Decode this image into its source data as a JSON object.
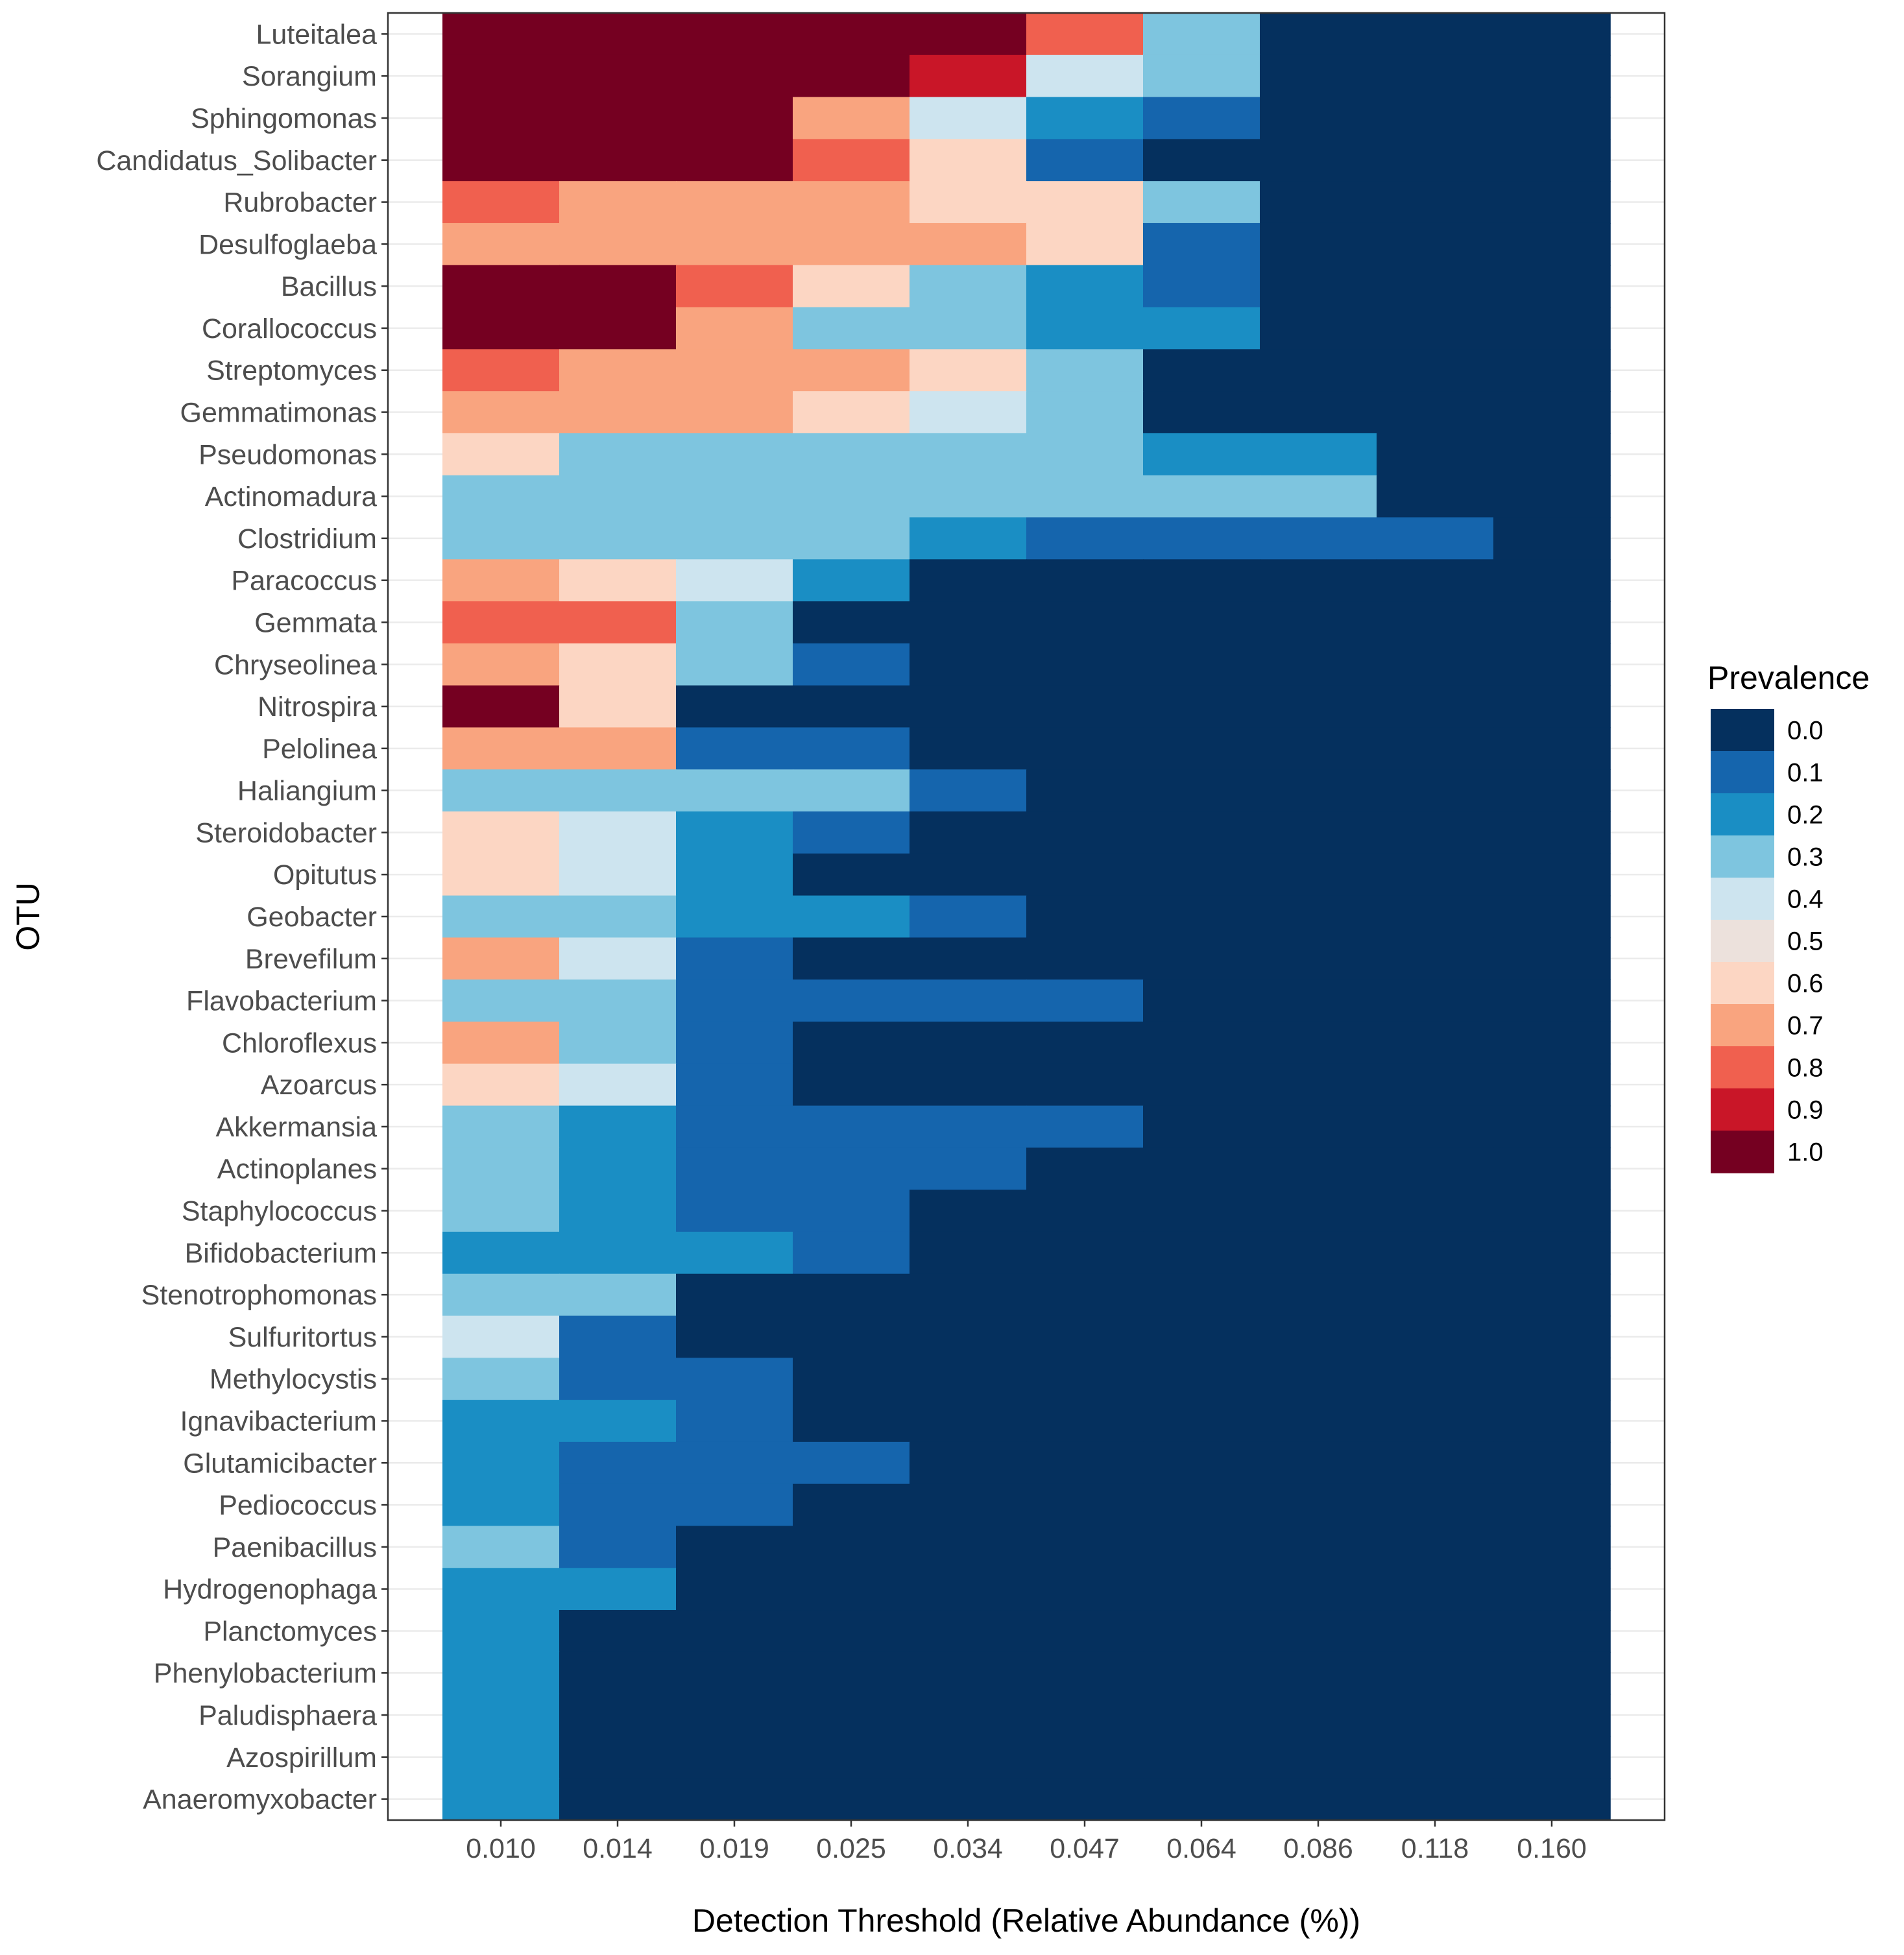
{
  "chart_data": {
    "type": "heatmap",
    "title": "",
    "xlabel": "Detection Threshold (Relative Abundance (%))",
    "ylabel": "OTU",
    "x_categories": [
      "0.010",
      "0.014",
      "0.019",
      "0.025",
      "0.034",
      "0.047",
      "0.064",
      "0.086",
      "0.118",
      "0.160"
    ],
    "y_categories": [
      "Luteitalea",
      "Sorangium",
      "Sphingomonas",
      "Candidatus_Solibacter",
      "Rubrobacter",
      "Desulfoglaeba",
      "Bacillus",
      "Corallococcus",
      "Streptomyces",
      "Gemmatimonas",
      "Pseudomonas",
      "Actinomadura",
      "Clostridium",
      "Paracoccus",
      "Gemmata",
      "Chryseolinea",
      "Nitrospira",
      "Pelolinea",
      "Haliangium",
      "Steroidobacter",
      "Opitutus",
      "Geobacter",
      "Brevefilum",
      "Flavobacterium",
      "Chloroflexus",
      "Azoarcus",
      "Akkermansia",
      "Actinoplanes",
      "Staphylococcus",
      "Bifidobacterium",
      "Stenotrophomonas",
      "Sulfuritortus",
      "Methylocystis",
      "Ignavibacterium",
      "Glutamicibacter",
      "Pediococcus",
      "Paenibacillus",
      "Hydrogenophaga",
      "Planctomyces",
      "Phenylobacterium",
      "Paludisphaera",
      "Azospirillum",
      "Anaeromyxobacter"
    ],
    "legend_title": "Prevalence",
    "legend": [
      "0.0",
      "0.1",
      "0.2",
      "0.3",
      "0.4",
      "0.5",
      "0.6",
      "0.7",
      "0.8",
      "0.9",
      "1.0"
    ],
    "legend_colors": [
      "#05305e",
      "#1565ad",
      "#1a8ec4",
      "#7ec5df",
      "#cde4ef",
      "#ece1dc",
      "#fcd6c3",
      "#f9a47f",
      "#f0604f",
      "#c91628",
      "#750021"
    ],
    "value_range": [
      0,
      1
    ],
    "values": [
      [
        1.0,
        1.0,
        1.0,
        1.0,
        1.0,
        0.8,
        0.3,
        0.0,
        0.0,
        0.0
      ],
      [
        1.0,
        1.0,
        1.0,
        1.0,
        0.9,
        0.4,
        0.3,
        0.0,
        0.0,
        0.0
      ],
      [
        1.0,
        1.0,
        1.0,
        0.7,
        0.4,
        0.2,
        0.1,
        0.0,
        0.0,
        0.0
      ],
      [
        1.0,
        1.0,
        1.0,
        0.8,
        0.6,
        0.1,
        0.0,
        0.0,
        0.0,
        0.0
      ],
      [
        0.8,
        0.7,
        0.7,
        0.7,
        0.6,
        0.6,
        0.3,
        0.0,
        0.0,
        0.0
      ],
      [
        0.7,
        0.7,
        0.7,
        0.7,
        0.7,
        0.6,
        0.1,
        0.0,
        0.0,
        0.0
      ],
      [
        1.0,
        1.0,
        0.8,
        0.6,
        0.3,
        0.2,
        0.1,
        0.0,
        0.0,
        0.0
      ],
      [
        1.0,
        1.0,
        0.7,
        0.3,
        0.3,
        0.2,
        0.2,
        0.0,
        0.0,
        0.0
      ],
      [
        0.8,
        0.7,
        0.7,
        0.7,
        0.6,
        0.3,
        0.0,
        0.0,
        0.0,
        0.0
      ],
      [
        0.7,
        0.7,
        0.7,
        0.6,
        0.4,
        0.3,
        0.0,
        0.0,
        0.0,
        0.0
      ],
      [
        0.6,
        0.3,
        0.3,
        0.3,
        0.3,
        0.3,
        0.2,
        0.2,
        0.0,
        0.0
      ],
      [
        0.3,
        0.3,
        0.3,
        0.3,
        0.3,
        0.3,
        0.3,
        0.3,
        0.0,
        0.0
      ],
      [
        0.3,
        0.3,
        0.3,
        0.3,
        0.2,
        0.1,
        0.1,
        0.1,
        0.1,
        0.0
      ],
      [
        0.7,
        0.6,
        0.4,
        0.2,
        0.0,
        0.0,
        0.0,
        0.0,
        0.0,
        0.0
      ],
      [
        0.8,
        0.8,
        0.3,
        0.0,
        0.0,
        0.0,
        0.0,
        0.0,
        0.0,
        0.0
      ],
      [
        0.7,
        0.6,
        0.3,
        0.1,
        0.0,
        0.0,
        0.0,
        0.0,
        0.0,
        0.0
      ],
      [
        1.0,
        0.6,
        0.0,
        0.0,
        0.0,
        0.0,
        0.0,
        0.0,
        0.0,
        0.0
      ],
      [
        0.7,
        0.7,
        0.1,
        0.1,
        0.0,
        0.0,
        0.0,
        0.0,
        0.0,
        0.0
      ],
      [
        0.3,
        0.3,
        0.3,
        0.3,
        0.1,
        0.0,
        0.0,
        0.0,
        0.0,
        0.0
      ],
      [
        0.6,
        0.4,
        0.2,
        0.1,
        0.0,
        0.0,
        0.0,
        0.0,
        0.0,
        0.0
      ],
      [
        0.6,
        0.4,
        0.2,
        0.0,
        0.0,
        0.0,
        0.0,
        0.0,
        0.0,
        0.0
      ],
      [
        0.3,
        0.3,
        0.2,
        0.2,
        0.1,
        0.0,
        0.0,
        0.0,
        0.0,
        0.0
      ],
      [
        0.7,
        0.4,
        0.1,
        0.0,
        0.0,
        0.0,
        0.0,
        0.0,
        0.0,
        0.0
      ],
      [
        0.3,
        0.3,
        0.1,
        0.1,
        0.1,
        0.1,
        0.0,
        0.0,
        0.0,
        0.0
      ],
      [
        0.7,
        0.3,
        0.1,
        0.0,
        0.0,
        0.0,
        0.0,
        0.0,
        0.0,
        0.0
      ],
      [
        0.6,
        0.4,
        0.1,
        0.0,
        0.0,
        0.0,
        0.0,
        0.0,
        0.0,
        0.0
      ],
      [
        0.3,
        0.2,
        0.1,
        0.1,
        0.1,
        0.1,
        0.0,
        0.0,
        0.0,
        0.0
      ],
      [
        0.3,
        0.2,
        0.1,
        0.1,
        0.1,
        0.0,
        0.0,
        0.0,
        0.0,
        0.0
      ],
      [
        0.3,
        0.2,
        0.1,
        0.1,
        0.0,
        0.0,
        0.0,
        0.0,
        0.0,
        0.0
      ],
      [
        0.2,
        0.2,
        0.2,
        0.1,
        0.0,
        0.0,
        0.0,
        0.0,
        0.0,
        0.0
      ],
      [
        0.3,
        0.3,
        0.0,
        0.0,
        0.0,
        0.0,
        0.0,
        0.0,
        0.0,
        0.0
      ],
      [
        0.4,
        0.1,
        0.0,
        0.0,
        0.0,
        0.0,
        0.0,
        0.0,
        0.0,
        0.0
      ],
      [
        0.3,
        0.1,
        0.1,
        0.0,
        0.0,
        0.0,
        0.0,
        0.0,
        0.0,
        0.0
      ],
      [
        0.2,
        0.2,
        0.1,
        0.0,
        0.0,
        0.0,
        0.0,
        0.0,
        0.0,
        0.0
      ],
      [
        0.2,
        0.1,
        0.1,
        0.1,
        0.0,
        0.0,
        0.0,
        0.0,
        0.0,
        0.0
      ],
      [
        0.2,
        0.1,
        0.1,
        0.0,
        0.0,
        0.0,
        0.0,
        0.0,
        0.0,
        0.0
      ],
      [
        0.3,
        0.1,
        0.0,
        0.0,
        0.0,
        0.0,
        0.0,
        0.0,
        0.0,
        0.0
      ],
      [
        0.2,
        0.2,
        0.0,
        0.0,
        0.0,
        0.0,
        0.0,
        0.0,
        0.0,
        0.0
      ],
      [
        0.2,
        0.0,
        0.0,
        0.0,
        0.0,
        0.0,
        0.0,
        0.0,
        0.0,
        0.0
      ],
      [
        0.2,
        0.0,
        0.0,
        0.0,
        0.0,
        0.0,
        0.0,
        0.0,
        0.0,
        0.0
      ],
      [
        0.2,
        0.0,
        0.0,
        0.0,
        0.0,
        0.0,
        0.0,
        0.0,
        0.0,
        0.0
      ],
      [
        0.2,
        0.0,
        0.0,
        0.0,
        0.0,
        0.0,
        0.0,
        0.0,
        0.0,
        0.0
      ],
      [
        0.2,
        0.0,
        0.0,
        0.0,
        0.0,
        0.0,
        0.0,
        0.0,
        0.0,
        0.0
      ]
    ],
    "grid": true,
    "legend_position": "right"
  }
}
